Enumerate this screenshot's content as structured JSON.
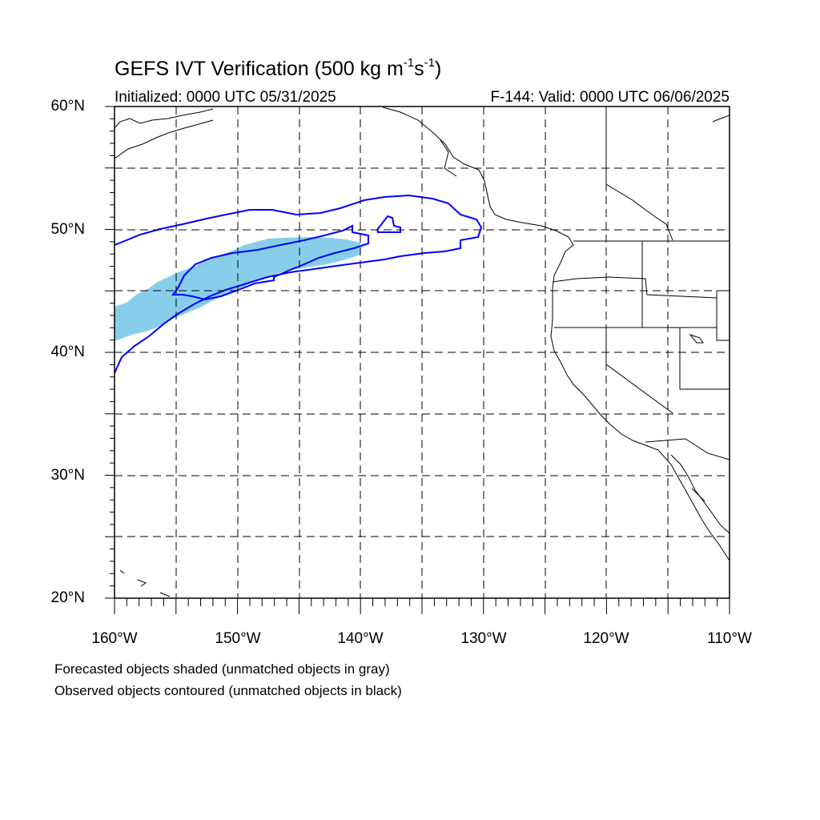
{
  "title": {
    "main": "GEFS IVT Verification (500 kg m",
    "exp1": "-1",
    "mid": "s",
    "exp2": "-1",
    "end": ")"
  },
  "initialized": "Initialized: 0000 UTC 05/31/2025",
  "valid": "F-144: Valid: 0000 UTC 06/06/2025",
  "y_axis_labels": [
    "60°N",
    "50°N",
    "40°N",
    "30°N",
    "20°N"
  ],
  "x_axis_labels": [
    "160°W",
    "150°W",
    "140°W",
    "130°W",
    "120°W",
    "110°W"
  ],
  "notes": [
    "Forecasted objects shaded (unmatched objects in gray)",
    "Observed objects contoured (unmatched objects in black)"
  ],
  "map": {
    "lon_range": [
      -160,
      -110
    ],
    "lat_range": [
      20,
      60
    ],
    "gridlines_every_deg": 5,
    "gridline_style": "dashed",
    "forecast_object_color": "#87ceeb",
    "observed_contour_color": "#0000ff",
    "coastline_color": "#000000"
  }
}
